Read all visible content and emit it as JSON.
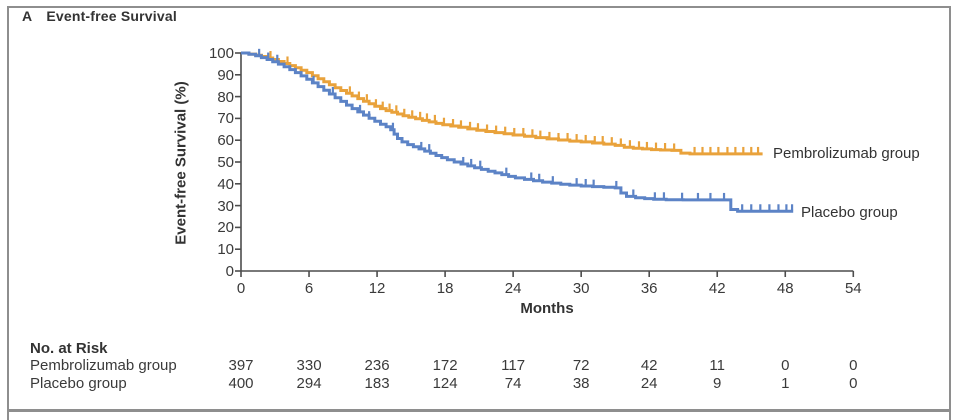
{
  "panel": {
    "label": "A",
    "title": "Event-free Survival"
  },
  "colors": {
    "pembrolizumab": "#E9A23B",
    "placebo": "#5C83C6",
    "axis": "#4d4d4d",
    "text": "#3a3a3a",
    "frame": "#8e8e8e"
  },
  "chart_data": {
    "type": "line",
    "subtype": "kaplan-meier-step",
    "title": "Event-free Survival",
    "xlabel": "Months",
    "ylabel": "Event-free Survival (%)",
    "xlim": [
      0,
      54
    ],
    "ylim": [
      0,
      100
    ],
    "xticks": [
      0,
      6,
      12,
      18,
      24,
      30,
      36,
      42,
      48,
      54
    ],
    "yticks": [
      100,
      90,
      80,
      70,
      60,
      50,
      40,
      30,
      20,
      10,
      0
    ],
    "grid": false,
    "legend_position": "right-of-curve-end",
    "series": [
      {
        "name": "Pembrolizumab group",
        "color": "#E9A23B",
        "points": [
          [
            0,
            100
          ],
          [
            0.7,
            99.5
          ],
          [
            1.3,
            99
          ],
          [
            1.8,
            98.4
          ],
          [
            2.3,
            97.7
          ],
          [
            2.8,
            97
          ],
          [
            3.3,
            96.1
          ],
          [
            3.8,
            95.2
          ],
          [
            4.3,
            94.2
          ],
          [
            4.8,
            93.2
          ],
          [
            5.3,
            92.1
          ],
          [
            5.8,
            91
          ],
          [
            6.3,
            89.6
          ],
          [
            6.8,
            88.2
          ],
          [
            7.3,
            86.8
          ],
          [
            7.8,
            85.4
          ],
          [
            8.3,
            84.1
          ],
          [
            8.8,
            82.8
          ],
          [
            9.3,
            81.5
          ],
          [
            9.8,
            80.3
          ],
          [
            10.3,
            79.1
          ],
          [
            10.8,
            77.9
          ],
          [
            11.3,
            76.7
          ],
          [
            11.8,
            75.6
          ],
          [
            12.3,
            74.5
          ],
          [
            12.8,
            73.6
          ],
          [
            13.3,
            72.8
          ],
          [
            13.8,
            72
          ],
          [
            14.3,
            71.2
          ],
          [
            14.8,
            70.5
          ],
          [
            15.4,
            69.8
          ],
          [
            16,
            69.1
          ],
          [
            16.6,
            68.4
          ],
          [
            17.2,
            67.7
          ],
          [
            17.8,
            67.1
          ],
          [
            18.5,
            66.5
          ],
          [
            19.2,
            65.9
          ],
          [
            20,
            65.2
          ],
          [
            20.8,
            64.6
          ],
          [
            21.6,
            64
          ],
          [
            22.4,
            63.5
          ],
          [
            23.2,
            63
          ],
          [
            24,
            62.4
          ],
          [
            25,
            61.8
          ],
          [
            26,
            61.2
          ],
          [
            27,
            60.6
          ],
          [
            28,
            60.1
          ],
          [
            29,
            59.6
          ],
          [
            30,
            59.2
          ],
          [
            31,
            58.7
          ],
          [
            32,
            58.2
          ],
          [
            33,
            57.6
          ],
          [
            33.8,
            56.8
          ],
          [
            34.6,
            56.3
          ],
          [
            35.4,
            56
          ],
          [
            36.2,
            55.7
          ],
          [
            37,
            55.5
          ],
          [
            38,
            55.3
          ],
          [
            38.8,
            54.1
          ],
          [
            39.6,
            53.7
          ],
          [
            41.5,
            53.7
          ],
          [
            46,
            53.7
          ]
        ],
        "censor_ticks": [
          2.6,
          4.1,
          9.6,
          10.4,
          11.1,
          11.9,
          12.5,
          13.1,
          13.7,
          14.4,
          15.1,
          15.8,
          16.4,
          17.1,
          17.9,
          18.7,
          19.4,
          20.2,
          20.9,
          21.7,
          22.5,
          23.3,
          24.1,
          24.9,
          25.7,
          26.4,
          27.2,
          28,
          28.8,
          29.6,
          30.4,
          31.2,
          31.9,
          32.7,
          33.5,
          34.3,
          35.1,
          35.8,
          36.6,
          37.4,
          38.2,
          40,
          40.7,
          41.4,
          42.1,
          42.9,
          43.6,
          44.3,
          45,
          45.6
        ]
      },
      {
        "name": "Placebo group",
        "color": "#5C83C6",
        "points": [
          [
            0,
            100
          ],
          [
            0.7,
            99.4
          ],
          [
            1.3,
            98.7
          ],
          [
            1.8,
            97.9
          ],
          [
            2.3,
            97
          ],
          [
            2.8,
            96
          ],
          [
            3.3,
            94.9
          ],
          [
            3.8,
            93.7
          ],
          [
            4.3,
            92.4
          ],
          [
            4.8,
            91
          ],
          [
            5.3,
            89.5
          ],
          [
            5.8,
            88
          ],
          [
            6.3,
            86.3
          ],
          [
            6.8,
            84.6
          ],
          [
            7.3,
            82.9
          ],
          [
            7.8,
            81.2
          ],
          [
            8.3,
            79.5
          ],
          [
            8.8,
            77.8
          ],
          [
            9.3,
            76.1
          ],
          [
            9.8,
            74.5
          ],
          [
            10.3,
            73
          ],
          [
            10.8,
            71.5
          ],
          [
            11.3,
            70.1
          ],
          [
            11.8,
            68.7
          ],
          [
            12.3,
            67.3
          ],
          [
            12.8,
            66.2
          ],
          [
            13.2,
            64.8
          ],
          [
            13.5,
            62.8
          ],
          [
            13.8,
            60.8
          ],
          [
            14.2,
            59.2
          ],
          [
            14.7,
            58
          ],
          [
            15.2,
            57
          ],
          [
            15.7,
            56
          ],
          [
            16.2,
            55
          ],
          [
            16.7,
            54
          ],
          [
            17.2,
            53
          ],
          [
            17.7,
            52
          ],
          [
            18.2,
            51
          ],
          [
            18.8,
            50
          ],
          [
            19.4,
            49.1
          ],
          [
            20,
            48.2
          ],
          [
            20.6,
            47.4
          ],
          [
            21.2,
            46.6
          ],
          [
            21.8,
            45.8
          ],
          [
            22.4,
            45
          ],
          [
            23,
            44.2
          ],
          [
            23.6,
            43.4
          ],
          [
            24.2,
            42.7
          ],
          [
            25,
            42
          ],
          [
            25.8,
            41.4
          ],
          [
            26.6,
            40.8
          ],
          [
            27.4,
            40.3
          ],
          [
            28.2,
            39.8
          ],
          [
            29,
            39.4
          ],
          [
            30,
            39
          ],
          [
            31,
            38.7
          ],
          [
            32,
            38.4
          ],
          [
            33,
            38.1
          ],
          [
            33.5,
            35.8
          ],
          [
            34,
            34.2
          ],
          [
            34.8,
            33.6
          ],
          [
            35.6,
            33.2
          ],
          [
            36.4,
            32.9
          ],
          [
            37.5,
            32.7
          ],
          [
            39,
            32.6
          ],
          [
            42,
            32.6
          ],
          [
            43.2,
            28.2
          ],
          [
            43.8,
            27.4
          ],
          [
            44.5,
            27.4
          ],
          [
            48.7,
            27.4
          ]
        ],
        "censor_ticks": [
          1.6,
          2.4,
          3.2,
          6.4,
          8.1,
          10.5,
          11.3,
          13.4,
          15.9,
          16.6,
          19.6,
          20.3,
          21.1,
          23.4,
          25.6,
          26.3,
          27.5,
          29.6,
          30.4,
          31.1,
          33.1,
          34.6,
          36.5,
          37.3,
          38.9,
          40.3,
          41.4,
          42.6,
          44.2,
          45,
          45.8,
          46.6,
          47.4,
          48.1,
          48.6
        ]
      }
    ]
  },
  "legend": {
    "pembrolizumab_label": "Pembrolizumab group",
    "placebo_label": "Placebo group"
  },
  "risk_table": {
    "title": "No. at Risk",
    "months": [
      0,
      6,
      12,
      18,
      24,
      30,
      36,
      42,
      48,
      54
    ],
    "rows": [
      {
        "label": "Pembrolizumab group",
        "values": [
          397,
          330,
          236,
          172,
          117,
          72,
          42,
          11,
          0,
          0
        ]
      },
      {
        "label": "Placebo group",
        "values": [
          400,
          294,
          183,
          124,
          74,
          38,
          24,
          9,
          1,
          0
        ]
      }
    ]
  }
}
